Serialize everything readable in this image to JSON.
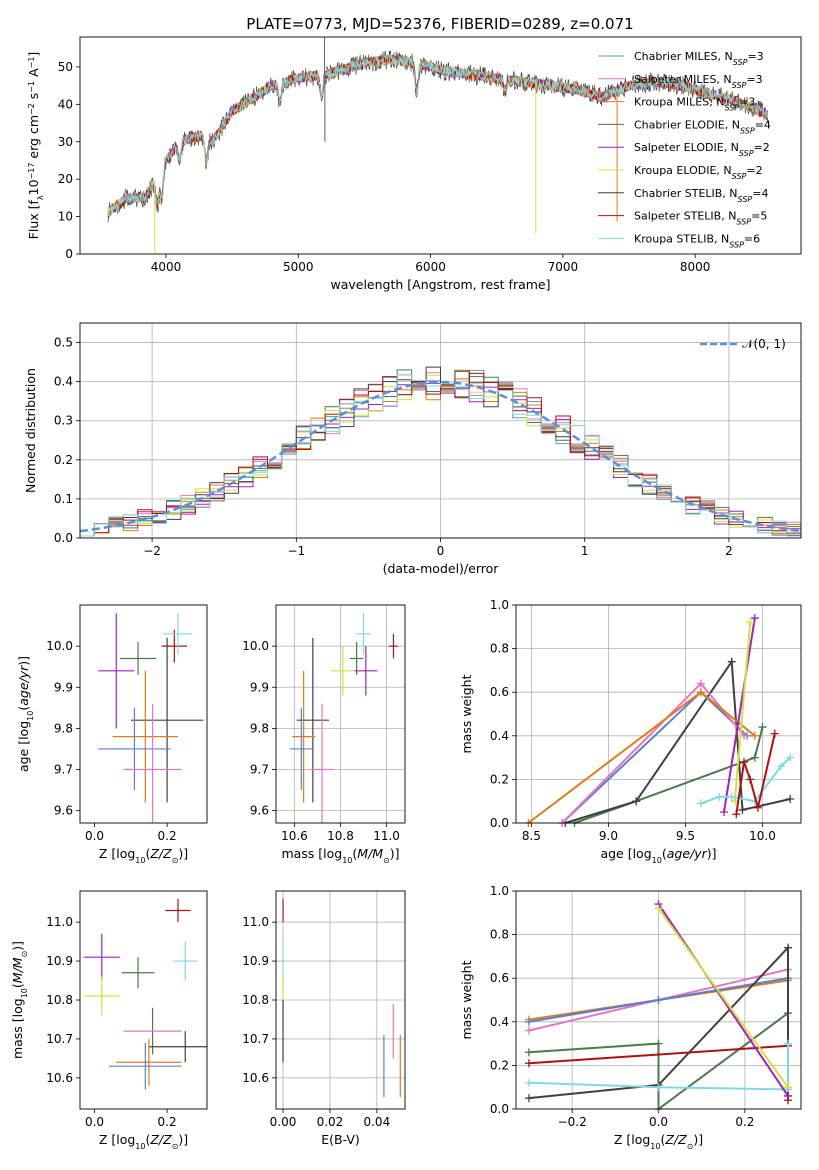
{
  "figure_title": "PLATE=0773, MJD=52376, FIBERID=0289, z=0.071",
  "colors": {
    "Chabrier MILES": "#5fa89a",
    "Salpeter MILES": "#e377c2",
    "Kroupa MILES": "#e07b1a",
    "Chabrier ELODIE": "#4a7a4a",
    "Salpeter ELODIE": "#a020c0",
    "Kroupa ELODIE": "#d4e03a",
    "Chabrier STELIB": "#404040",
    "Salpeter STELIB": "#b01010",
    "Kroupa STELIB": "#80d8e0",
    "normal": "#5b8fd6",
    "extra_blue": "#5b7fd6"
  },
  "chart_data": [
    {
      "type": "line",
      "id": "spectrum",
      "title": "PLATE=0773, MJD=52376, FIBERID=0289, z=0.071",
      "xlabel": "wavelength [Angstrom, rest frame]",
      "ylabel": "Flux [f_λ10^−17 erg cm^−2 s^−1 A^−1]",
      "xlim": [
        3350,
        8800
      ],
      "ylim": [
        0,
        58
      ],
      "xticks": [
        4000,
        5000,
        6000,
        7000,
        8000
      ],
      "yticks": [
        0,
        10,
        20,
        30,
        40,
        50
      ],
      "grid": false,
      "legend": "top-right",
      "legend_entries": [
        {
          "series": "Chabrier MILES",
          "label": "Chabrier MILES, N",
          "sub": "SSP",
          "n": "=3"
        },
        {
          "series": "Salpeter MILES",
          "label": "Salpeter MILES, N",
          "sub": "SSP",
          "n": "=3"
        },
        {
          "series": "Kroupa MILES",
          "label": "Kroupa MILES, N",
          "sub": "SSP",
          "n": "=3"
        },
        {
          "series": "Chabrier ELODIE",
          "label": "Chabrier ELODIE, N",
          "sub": "SSP",
          "n": "=4"
        },
        {
          "series": "Salpeter ELODIE",
          "label": "Salpeter ELODIE, N",
          "sub": "SSP",
          "n": "=2"
        },
        {
          "series": "Kroupa ELODIE",
          "label": "Kroupa ELODIE, N",
          "sub": "SSP",
          "n": "=2"
        },
        {
          "series": "Chabrier STELIB",
          "label": "Chabrier STELIB, N",
          "sub": "SSP",
          "n": "=4"
        },
        {
          "series": "Salpeter STELIB",
          "label": "Salpeter STELIB, N",
          "sub": "SSP",
          "n": "=5"
        },
        {
          "series": "Kroupa STELIB",
          "label": "Kroupa STELIB, N",
          "sub": "SSP",
          "n": "=6"
        }
      ],
      "continuum_knots": [
        [
          3560,
          11
        ],
        [
          3700,
          15
        ],
        [
          3850,
          15
        ],
        [
          3920,
          20
        ],
        [
          4000,
          25
        ],
        [
          4100,
          30
        ],
        [
          4300,
          32
        ],
        [
          4350,
          30
        ],
        [
          4500,
          38
        ],
        [
          4800,
          45
        ],
        [
          5000,
          47
        ],
        [
          5200,
          48
        ],
        [
          5500,
          51
        ],
        [
          5700,
          52
        ],
        [
          5900,
          51
        ],
        [
          6100,
          49
        ],
        [
          6300,
          48
        ],
        [
          6500,
          47
        ],
        [
          6700,
          46
        ],
        [
          6900,
          45
        ],
        [
          7100,
          44
        ],
        [
          7300,
          42
        ],
        [
          7500,
          45
        ],
        [
          7700,
          46
        ],
        [
          7900,
          45
        ],
        [
          8100,
          43
        ],
        [
          8300,
          41
        ],
        [
          8500,
          38
        ],
        [
          8550,
          37
        ]
      ],
      "absorption_features": [
        [
          3934,
          -8
        ],
        [
          3968,
          -8
        ],
        [
          4102,
          -5
        ],
        [
          4305,
          -7
        ],
        [
          4861,
          -5
        ],
        [
          5176,
          -6
        ],
        [
          5894,
          -8
        ],
        [
          6563,
          -3
        ]
      ],
      "spikes": [
        [
          5199,
          22
        ],
        [
          5201,
          -18
        ],
        [
          6795,
          -40
        ],
        [
          7410,
          -35
        ],
        [
          3915,
          -30
        ]
      ],
      "noise_amplitude": 2.0
    },
    {
      "type": "bar",
      "id": "residual-histogram",
      "xlabel": "(data-model)/error",
      "ylabel": "Normed distribution",
      "xlim": [
        -2.5,
        2.5
      ],
      "ylim": [
        0,
        0.55
      ],
      "xticks": [
        -2,
        -1,
        0,
        1,
        2
      ],
      "yticks": [
        0.0,
        0.1,
        0.2,
        0.3,
        0.4,
        0.5
      ],
      "grid": true,
      "legend": "top-right",
      "bin_width": 0.1,
      "jitter_amplitude": 0.06,
      "normal_curve": {
        "label": "𝒩(0, 1)",
        "mean": 0,
        "sigma": 1,
        "style": "dashed"
      }
    },
    {
      "type": "scatter",
      "id": "age-vs-metallicity",
      "xlabel": "Z [log10(Z/Z⊙)]",
      "ylabel": "age  [log10(age/yr)]",
      "xlim": [
        -0.04,
        0.31
      ],
      "ylim": [
        9.57,
        10.1
      ],
      "xticks": [
        0.0,
        0.2
      ],
      "yticks": [
        9.6,
        9.7,
        9.8,
        9.9,
        10.0
      ],
      "grid": false,
      "points": [
        {
          "series": "Salpeter ELODIE",
          "x": 0.06,
          "y": 9.94,
          "xerr": 0.05,
          "yerr": 0.14
        },
        {
          "series": "Chabrier ELODIE",
          "x": 0.12,
          "y": 9.97,
          "xerr": 0.05,
          "yerr": 0.04
        },
        {
          "series": "Salpeter STELIB",
          "x": 0.22,
          "y": 10.0,
          "xerr": 0.035,
          "yerr": 0.04
        },
        {
          "series": "Kroupa STELIB",
          "x": 0.23,
          "y": 10.03,
          "xerr": 0.04,
          "yerr": 0.05
        },
        {
          "series": "Chabrier STELIB",
          "x": 0.2,
          "y": 9.82,
          "xerr": 0.1,
          "yerr": 0.2
        },
        {
          "series": "Kroupa MILES",
          "x": 0.14,
          "y": 9.78,
          "xerr": 0.09,
          "yerr": 0.16
        },
        {
          "series": "extra_blue",
          "x": 0.11,
          "y": 9.75,
          "xerr": 0.1,
          "yerr": 0.1
        },
        {
          "series": "Salpeter MILES",
          "x": 0.16,
          "y": 9.7,
          "xerr": 0.08,
          "yerr": 0.16
        }
      ]
    },
    {
      "type": "scatter",
      "id": "age-vs-mass",
      "xlabel": "mass [log10(M/M⊙)]",
      "ylabel": "",
      "xlim": [
        10.52,
        11.08
      ],
      "ylim": [
        9.57,
        10.1
      ],
      "xticks": [
        10.6,
        10.8,
        11.0
      ],
      "yticks": [
        9.6,
        9.7,
        9.8,
        9.9,
        10.0
      ],
      "grid": true,
      "points": [
        {
          "series": "Kroupa ELODIE",
          "x": 10.81,
          "y": 9.94,
          "xerr": 0.05,
          "yerr": 0.06
        },
        {
          "series": "Chabrier ELODIE",
          "x": 10.87,
          "y": 9.97,
          "xerr": 0.03,
          "yerr": 0.04
        },
        {
          "series": "Salpeter ELODIE",
          "x": 10.91,
          "y": 9.94,
          "xerr": 0.05,
          "yerr": 0.06
        },
        {
          "series": "Kroupa STELIB",
          "x": 10.9,
          "y": 10.03,
          "xerr": 0.03,
          "yerr": 0.05
        },
        {
          "series": "Salpeter STELIB",
          "x": 11.03,
          "y": 10.0,
          "xerr": 0.02,
          "yerr": 0.03
        },
        {
          "series": "Chabrier STELIB",
          "x": 10.68,
          "y": 9.82,
          "xerr": 0.07,
          "yerr": 0.2
        },
        {
          "series": "Kroupa MILES",
          "x": 10.64,
          "y": 9.78,
          "xerr": 0.05,
          "yerr": 0.16
        },
        {
          "series": "extra_blue",
          "x": 10.63,
          "y": 9.75,
          "xerr": 0.05,
          "yerr": 0.1
        },
        {
          "series": "Salpeter MILES",
          "x": 10.72,
          "y": 9.7,
          "xerr": 0.05,
          "yerr": 0.16
        }
      ]
    },
    {
      "type": "line",
      "id": "mass-weight-vs-age",
      "xlabel": "age  [log10(age/yr)]",
      "ylabel": "mass weight",
      "xlim": [
        8.4,
        10.25
      ],
      "ylim": [
        0,
        1.0
      ],
      "xticks": [
        8.5,
        9.0,
        9.5,
        10.0
      ],
      "yticks": [
        0.0,
        0.2,
        0.4,
        0.6,
        0.8,
        1.0
      ],
      "grid": true,
      "series": [
        {
          "name": "Chabrier ELODIE",
          "points": [
            [
              8.78,
              0.0
            ],
            [
              9.18,
              0.1
            ],
            [
              9.95,
              0.3
            ],
            [
              10.0,
              0.44
            ]
          ]
        },
        {
          "name": "Chabrier STELIB",
          "points": [
            [
              8.72,
              0.0
            ],
            [
              9.18,
              0.1
            ],
            [
              9.8,
              0.74
            ],
            [
              9.87,
              0.06
            ],
            [
              10.18,
              0.11
            ]
          ]
        },
        {
          "name": "extra_blue",
          "points": [
            [
              8.7,
              0.0
            ],
            [
              9.6,
              0.6
            ],
            [
              9.9,
              0.4
            ]
          ]
        },
        {
          "name": "Salpeter MILES",
          "points": [
            [
              8.7,
              0.0
            ],
            [
              9.6,
              0.64
            ],
            [
              9.88,
              0.4
            ]
          ]
        },
        {
          "name": "Kroupa MILES",
          "points": [
            [
              8.48,
              0.0
            ],
            [
              9.6,
              0.6
            ],
            [
              9.95,
              0.4
            ]
          ]
        },
        {
          "name": "Salpeter ELODIE",
          "points": [
            [
              9.75,
              0.05
            ],
            [
              9.95,
              0.94
            ]
          ]
        },
        {
          "name": "Kroupa ELODIE",
          "points": [
            [
              9.82,
              0.1
            ],
            [
              9.92,
              0.92
            ]
          ]
        },
        {
          "name": "Kroupa STELIB",
          "points": [
            [
              9.6,
              0.09
            ],
            [
              9.72,
              0.12
            ],
            [
              9.8,
              0.12
            ],
            [
              9.95,
              0.1
            ],
            [
              10.12,
              0.26
            ],
            [
              10.18,
              0.3
            ]
          ]
        },
        {
          "name": "Salpeter STELIB",
          "points": [
            [
              9.83,
              0.04
            ],
            [
              9.88,
              0.28
            ],
            [
              9.92,
              0.2
            ],
            [
              9.97,
              0.07
            ],
            [
              10.08,
              0.41
            ]
          ]
        }
      ]
    },
    {
      "type": "scatter",
      "id": "mass-vs-metallicity",
      "xlabel": "Z [log10(Z/Z⊙)]",
      "ylabel": "mass [log10(M/M⊙)]",
      "xlim": [
        -0.04,
        0.31
      ],
      "ylim": [
        10.52,
        11.08
      ],
      "xticks": [
        0.0,
        0.2
      ],
      "yticks": [
        10.6,
        10.7,
        10.8,
        10.9,
        11.0
      ],
      "grid": false,
      "points": [
        {
          "series": "Salpeter ELODIE",
          "x": 0.02,
          "y": 10.91,
          "xerr": 0.05,
          "yerr": 0.06
        },
        {
          "series": "Kroupa ELODIE",
          "x": 0.02,
          "y": 10.81,
          "xerr": 0.05,
          "yerr": 0.05
        },
        {
          "series": "Chabrier ELODIE",
          "x": 0.12,
          "y": 10.87,
          "xerr": 0.045,
          "yerr": 0.04
        },
        {
          "series": "Salpeter STELIB",
          "x": 0.23,
          "y": 11.03,
          "xerr": 0.035,
          "yerr": 0.03
        },
        {
          "series": "Kroupa STELIB",
          "x": 0.25,
          "y": 10.9,
          "xerr": 0.035,
          "yerr": 0.05
        },
        {
          "series": "Chabrier ELODIE",
          "x": 0.16,
          "y": 10.72,
          "xerr": 0.0,
          "yerr": 0.06
        },
        {
          "series": "Chabrier STELIB",
          "x": 0.25,
          "y": 10.68,
          "xerr": 0.1,
          "yerr": 0.04
        },
        {
          "series": "Salpeter MILES",
          "x": 0.16,
          "y": 10.72,
          "xerr": 0.08,
          "yerr": 0.0
        },
        {
          "series": "Kroupa MILES",
          "x": 0.15,
          "y": 10.64,
          "xerr": 0.09,
          "yerr": 0.06
        },
        {
          "series": "extra_blue",
          "x": 0.14,
          "y": 10.63,
          "xerr": 0.1,
          "yerr": 0.06
        }
      ]
    },
    {
      "type": "scatter",
      "id": "mass-vs-ebv",
      "xlabel": "E(B-V)",
      "ylabel": "",
      "xlim": [
        -0.003,
        0.052
      ],
      "ylim": [
        10.52,
        11.08
      ],
      "xticks": [
        0.0,
        0.02,
        0.04
      ],
      "yticks": [
        10.6,
        10.7,
        10.8,
        10.9,
        11.0
      ],
      "grid": true,
      "points": [
        {
          "series": "Salpeter STELIB",
          "x": 0.0,
          "y": 11.03,
          "xerr": 0,
          "yerr": 0.03
        },
        {
          "series": "Kroupa STELIB",
          "x": 0.0,
          "y": 10.9,
          "xerr": 0,
          "yerr": 0.05
        },
        {
          "series": "Kroupa ELODIE",
          "x": 0.0,
          "y": 10.81,
          "xerr": 0,
          "yerr": 0.05
        },
        {
          "series": "Chabrier STELIB",
          "x": 0.0,
          "y": 10.72,
          "xerr": 0,
          "yerr": 0.08
        },
        {
          "series": "Salpeter MILES",
          "x": 0.047,
          "y": 10.72,
          "xerr": 0,
          "yerr": 0.07
        },
        {
          "series": "extra_blue",
          "x": 0.043,
          "y": 10.63,
          "xerr": 0,
          "yerr": 0.08
        },
        {
          "series": "Kroupa MILES",
          "x": 0.05,
          "y": 10.63,
          "xerr": 0,
          "yerr": 0.08
        }
      ]
    },
    {
      "type": "line",
      "id": "mass-weight-vs-metallicity",
      "xlabel": "Z [log10(Z/Z⊙)]",
      "ylabel": "mass weight",
      "xlim": [
        -0.33,
        0.33
      ],
      "ylim": [
        0,
        1.0
      ],
      "xticks": [
        -0.2,
        0.0,
        0.2
      ],
      "yticks": [
        0.0,
        0.2,
        0.4,
        0.6,
        0.8,
        1.0
      ],
      "grid": true,
      "series": [
        {
          "name": "Kroupa MILES",
          "points": [
            [
              -0.3,
              0.41
            ],
            [
              0.0,
              0.5
            ],
            [
              0.3,
              0.59
            ]
          ]
        },
        {
          "name": "Salpeter MILES",
          "points": [
            [
              -0.3,
              0.36
            ],
            [
              0.0,
              0.5
            ],
            [
              0.3,
              0.64
            ]
          ]
        },
        {
          "name": "extra_blue",
          "points": [
            [
              -0.3,
              0.4
            ],
            [
              0.0,
              0.5
            ],
            [
              0.3,
              0.6
            ]
          ]
        },
        {
          "name": "Chabrier ELODIE",
          "points": [
            [
              -0.3,
              0.26
            ],
            [
              0.0,
              0.3
            ],
            [
              0.0,
              0.0
            ],
            [
              0.3,
              0.44
            ]
          ]
        },
        {
          "name": "Salpeter STELIB",
          "points": [
            [
              -0.3,
              0.21
            ],
            [
              0.3,
              0.29
            ],
            [
              0.3,
              0.04
            ]
          ]
        },
        {
          "name": "Chabrier STELIB",
          "points": [
            [
              -0.3,
              0.05
            ],
            [
              0.0,
              0.11
            ],
            [
              0.3,
              0.74
            ],
            [
              0.3,
              0.06
            ]
          ]
        },
        {
          "name": "Kroupa STELIB",
          "points": [
            [
              -0.3,
              0.12
            ],
            [
              0.0,
              0.1
            ],
            [
              0.3,
              0.09
            ],
            [
              0.3,
              0.3
            ]
          ]
        },
        {
          "name": "Salpeter ELODIE",
          "points": [
            [
              0.0,
              0.94
            ],
            [
              0.3,
              0.06
            ]
          ]
        },
        {
          "name": "Kroupa ELODIE",
          "points": [
            [
              0.0,
              0.92
            ],
            [
              0.3,
              0.1
            ]
          ]
        }
      ]
    }
  ]
}
